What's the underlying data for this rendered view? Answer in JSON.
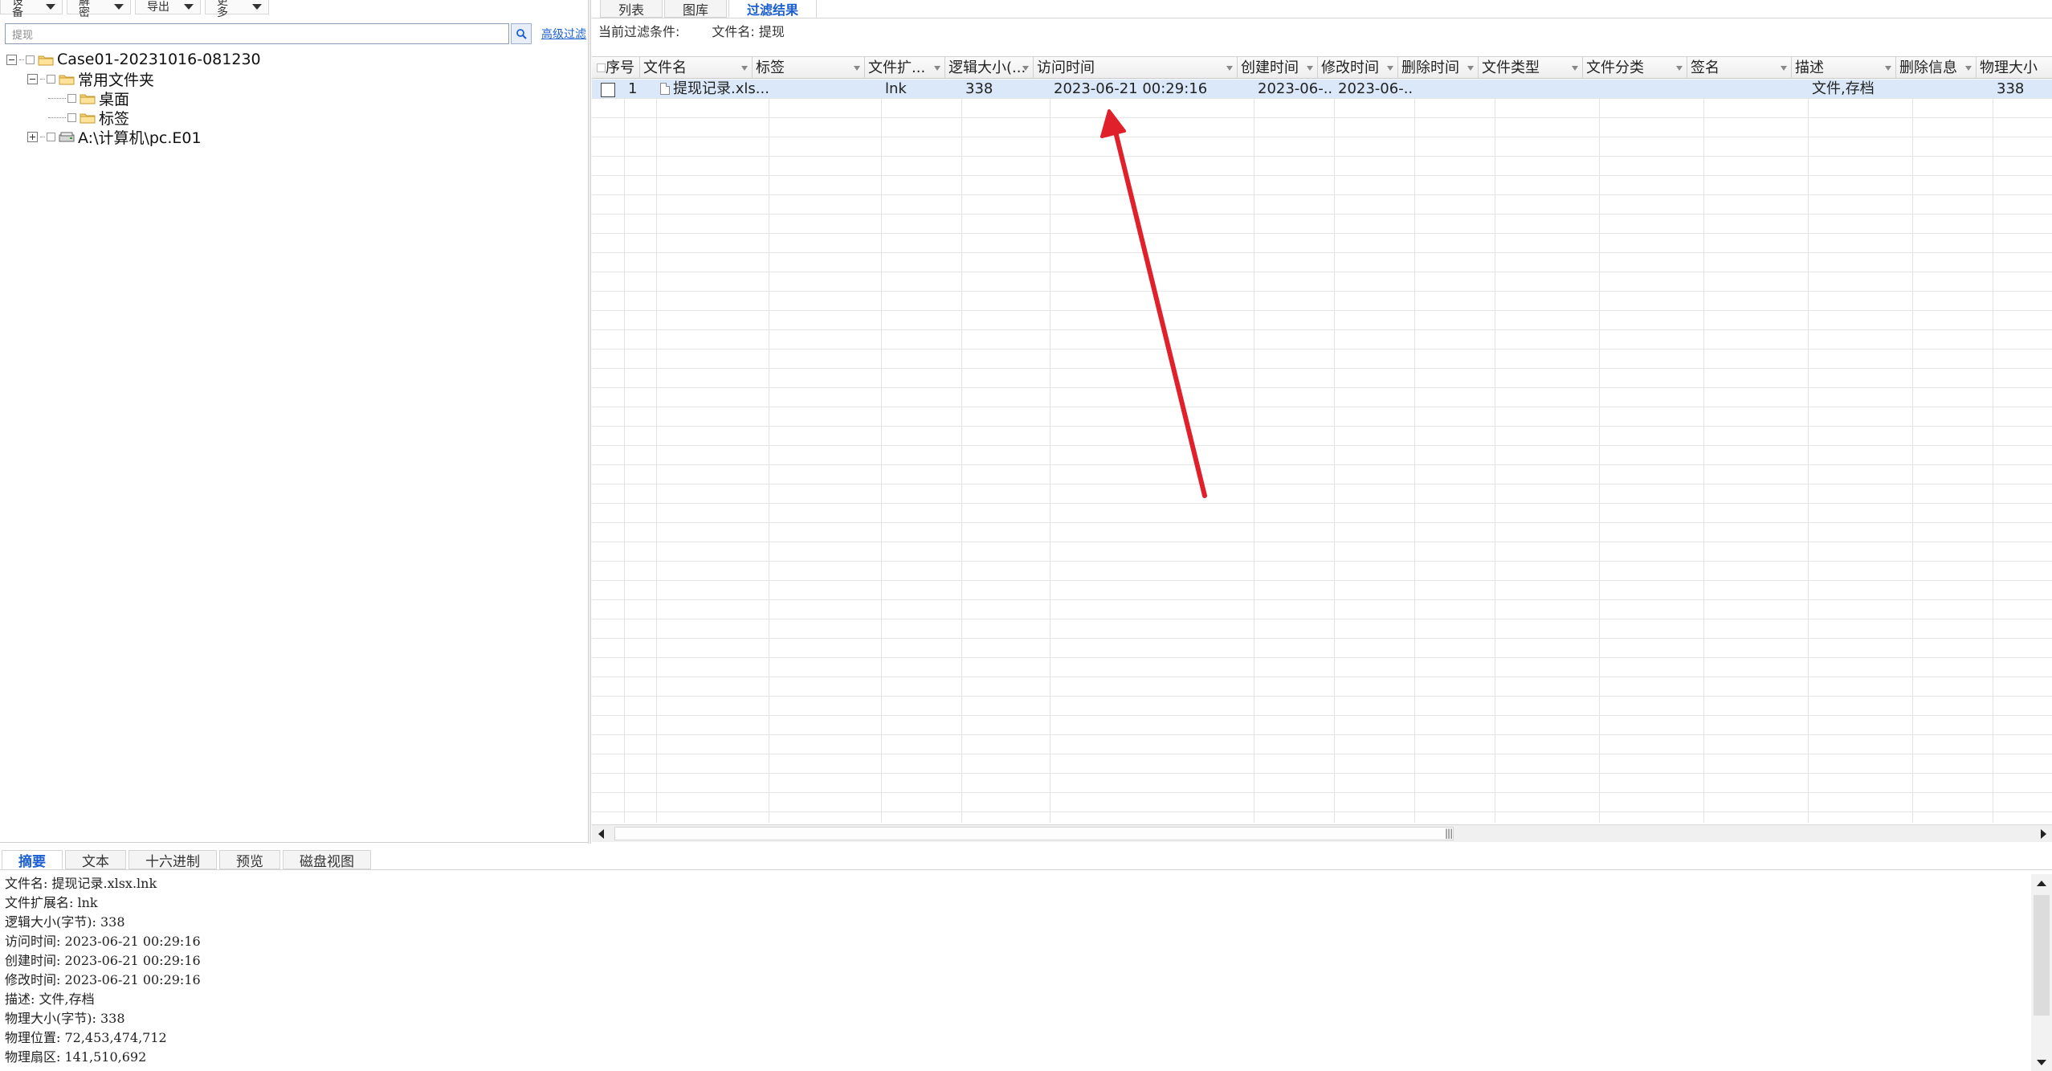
{
  "toolbar": {
    "buttons": [
      {
        "label": "设备"
      },
      {
        "label": "解密"
      },
      {
        "label": "导出"
      },
      {
        "label": "更多"
      }
    ]
  },
  "search": {
    "value": "提现",
    "advanced_link": "高级过滤"
  },
  "tree": {
    "case_root": "Case01-20231016-081230",
    "common_folders": "常用文件夹",
    "desktop": "桌面",
    "tags": "标签",
    "evidence": "A:\\计算机\\pc.E01"
  },
  "top_tabs": [
    {
      "label": "列表"
    },
    {
      "label": "图库"
    },
    {
      "label": "过滤结果"
    }
  ],
  "filter": {
    "prefix": "当前过滤条件:",
    "condition": "文件名: 提现"
  },
  "columns": [
    {
      "label": "序号"
    },
    {
      "label": "文件名"
    },
    {
      "label": "标签"
    },
    {
      "label": "文件扩..."
    },
    {
      "label": "逻辑大小(..."
    },
    {
      "label": "访问时间"
    },
    {
      "label": "创建时间"
    },
    {
      "label": "修改时间"
    },
    {
      "label": "删除时间"
    },
    {
      "label": "文件类型"
    },
    {
      "label": "文件分类"
    },
    {
      "label": "签名"
    },
    {
      "label": "描述"
    },
    {
      "label": "删除信息"
    },
    {
      "label": "物理大小"
    }
  ],
  "rows": [
    {
      "index": "1",
      "name": "提现记录.xls...",
      "tag": "",
      "ext": "lnk",
      "logical_size": "338",
      "access_time": "2023-06-21 00:29:16",
      "create_time": "2023-06-...",
      "modify_time": "2023-06-...",
      "delete_time": "",
      "file_type": "",
      "file_category": "",
      "signature": "",
      "description": "文件,存档",
      "delete_info": "",
      "physical_size": "338"
    }
  ],
  "bottom_tabs": [
    {
      "label": "摘要"
    },
    {
      "label": "文本"
    },
    {
      "label": "十六进制"
    },
    {
      "label": "预览"
    },
    {
      "label": "磁盘视图"
    }
  ],
  "summary_lines": [
    "文件名: 提现记录.xlsx.lnk",
    "文件扩展名: lnk",
    "逻辑大小(字节): 338",
    "访问时间: 2023-06-21 00:29:16",
    "创建时间: 2023-06-21 00:29:16",
    "修改时间: 2023-06-21 00:29:16",
    "描述: 文件,存档",
    "物理大小(字节): 338",
    "物理位置: 72,453,474,712",
    "物理扇区: 141,510,692"
  ],
  "colors": {
    "accent": "#1b5fd1",
    "selected_row": "#dbe8f9",
    "arrow": "#e0202a"
  },
  "icons": {
    "search": "search-icon",
    "folder": "folder-icon",
    "drive": "drive-icon",
    "file": "file-icon"
  }
}
